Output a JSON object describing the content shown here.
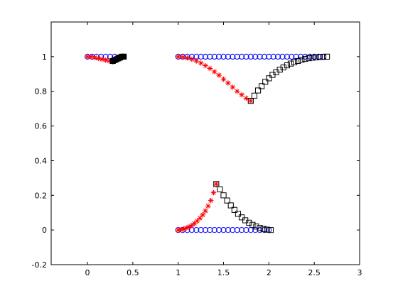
{
  "chart_data": {
    "type": "scatter",
    "title": "",
    "xlabel": "",
    "ylabel": "",
    "xlim": [
      -0.4,
      3.0
    ],
    "ylim": [
      -0.2,
      1.2
    ],
    "xticks": [
      0,
      0.5,
      1,
      1.5,
      2,
      2.5,
      3
    ],
    "xtick_labels": [
      "0",
      "0.5",
      "1",
      "1.5",
      "2",
      "2.5",
      "3"
    ],
    "yticks": [
      -0.2,
      0,
      0.2,
      0.4,
      0.6,
      0.8,
      1
    ],
    "ytick_labels": [
      "-0.2",
      "0",
      "0.2",
      "0.4",
      "0.6",
      "0.8",
      "1"
    ],
    "grid": false,
    "legend": "none",
    "series": [
      {
        "marker": "circle",
        "color": "#0000ff",
        "x": [
          0,
          0.05,
          0.1,
          0.15,
          0.2,
          0.25,
          0.3
        ],
        "y": [
          1,
          1,
          1,
          1,
          1,
          1,
          1
        ]
      },
      {
        "marker": "star",
        "color": "#ff0000",
        "x": [
          0,
          0.04,
          0.08,
          0.12,
          0.16,
          0.2,
          0.24,
          0.28
        ],
        "y": [
          1,
          1,
          0.995,
          0.99,
          0.985,
          0.98,
          0.975,
          0.97
        ]
      },
      {
        "marker": "square-filled",
        "color": "#000000",
        "x": [
          0.28,
          0.3,
          0.32,
          0.34,
          0.36,
          0.38,
          0.4
        ],
        "y": [
          0.975,
          0.98,
          0.985,
          0.99,
          0.995,
          1,
          1
        ]
      },
      {
        "marker": "circle",
        "color": "#0000ff",
        "x": [
          1,
          1.05,
          1.1,
          1.15,
          1.2,
          1.25,
          1.3,
          1.35,
          1.4,
          1.45,
          1.5,
          1.55,
          1.6,
          1.65,
          1.7,
          1.75,
          1.8,
          1.85,
          1.9,
          1.95,
          2,
          2.05,
          2.1,
          2.15,
          2.2,
          2.25,
          2.3,
          2.35,
          2.4,
          2.45,
          2.5,
          2.55,
          2.6
        ],
        "y": [
          1,
          1,
          1,
          1,
          1,
          1,
          1,
          1,
          1,
          1,
          1,
          1,
          1,
          1,
          1,
          1,
          1,
          1,
          1,
          1,
          1,
          1,
          1,
          1,
          1,
          1,
          1,
          1,
          1,
          1,
          1,
          1,
          1
        ]
      },
      {
        "marker": "star",
        "color": "#ff0000",
        "x": [
          1,
          1.05,
          1.1,
          1.15,
          1.2,
          1.25,
          1.3,
          1.35,
          1.4,
          1.45,
          1.5,
          1.55,
          1.6,
          1.65,
          1.7,
          1.75,
          1.8
        ],
        "y": [
          1,
          0.997,
          0.993,
          0.985,
          0.975,
          0.963,
          0.948,
          0.932,
          0.913,
          0.893,
          0.87,
          0.848,
          0.824,
          0.8,
          0.78,
          0.76,
          0.745
        ]
      },
      {
        "marker": "square",
        "color": "#000000",
        "x": [
          1.8,
          1.84,
          1.88,
          1.92,
          1.96,
          2,
          2.04,
          2.08,
          2.12,
          2.16,
          2.2,
          2.24,
          2.28,
          2.32,
          2.36,
          2.4,
          2.44,
          2.48,
          2.52,
          2.56,
          2.6,
          2.64
        ],
        "y": [
          0.745,
          0.775,
          0.805,
          0.83,
          0.855,
          0.875,
          0.895,
          0.91,
          0.925,
          0.938,
          0.95,
          0.96,
          0.968,
          0.975,
          0.982,
          0.987,
          0.991,
          0.994,
          0.996,
          0.998,
          0.999,
          1
        ]
      },
      {
        "marker": "circle",
        "color": "#0000ff",
        "x": [
          1,
          1.05,
          1.1,
          1.15,
          1.2,
          1.25,
          1.3,
          1.35,
          1.4,
          1.45,
          1.5,
          1.55,
          1.6,
          1.65,
          1.7,
          1.75,
          1.8,
          1.85,
          1.9,
          1.95,
          2
        ],
        "y": [
          0,
          0,
          0,
          0,
          0,
          0,
          0,
          0,
          0,
          0,
          0,
          0,
          0,
          0,
          0,
          0,
          0,
          0,
          0,
          0,
          0
        ]
      },
      {
        "marker": "star",
        "color": "#ff0000",
        "x": [
          1,
          1.03,
          1.06,
          1.09,
          1.12,
          1.15,
          1.18,
          1.21,
          1.24,
          1.27,
          1.3,
          1.33,
          1.36,
          1.39,
          1.42
        ],
        "y": [
          0,
          0.002,
          0.006,
          0.011,
          0.018,
          0.027,
          0.038,
          0.052,
          0.068,
          0.087,
          0.11,
          0.138,
          0.17,
          0.215,
          0.265
        ]
      },
      {
        "marker": "square",
        "color": "#000000",
        "x": [
          1.42,
          1.46,
          1.5,
          1.54,
          1.58,
          1.62,
          1.66,
          1.7,
          1.74,
          1.78,
          1.82,
          1.86,
          1.9,
          1.94,
          1.98,
          2.02
        ],
        "y": [
          0.265,
          0.235,
          0.2,
          0.17,
          0.142,
          0.116,
          0.093,
          0.073,
          0.056,
          0.042,
          0.03,
          0.02,
          0.012,
          0.006,
          0.002,
          0
        ]
      }
    ]
  }
}
